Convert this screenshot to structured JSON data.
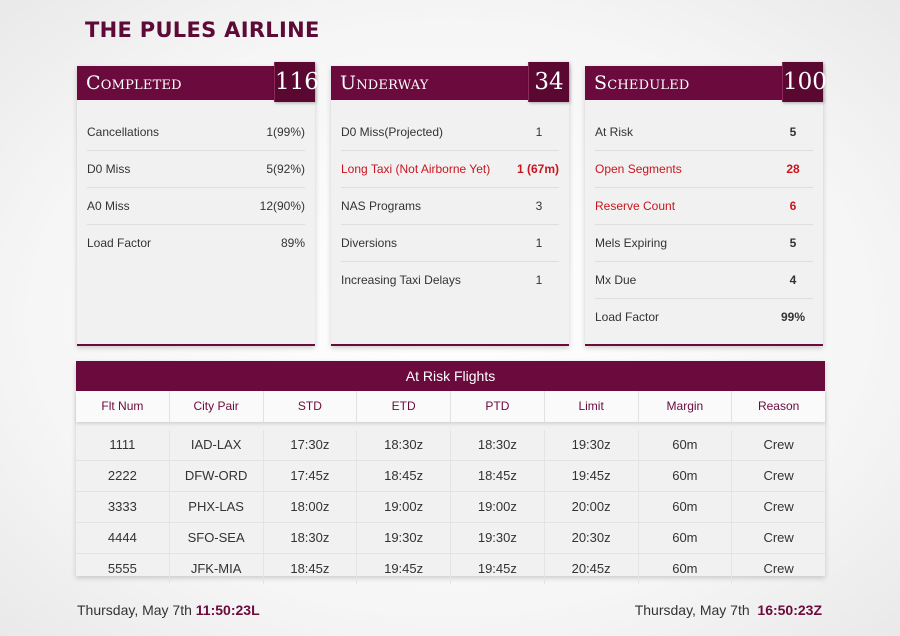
{
  "app": {
    "title": "THE PULES AIRLINE"
  },
  "cards": [
    {
      "name": "Completed",
      "count": "116",
      "rows": [
        {
          "label": "Cancellations",
          "value": "1(99%)",
          "alert": false
        },
        {
          "label": "D0 Miss",
          "value": "5(92%)",
          "alert": false
        },
        {
          "label": "A0 Miss",
          "value": "12(90%)",
          "alert": false
        },
        {
          "label": "Load Factor",
          "value": "89%",
          "alert": false
        }
      ]
    },
    {
      "name": "Underway",
      "count": "34",
      "rows": [
        {
          "label": "D0 Miss(Projected)",
          "value": "1",
          "alert": false
        },
        {
          "label": "Long Taxi (Not Airborne Yet)",
          "value": "1 (67m)",
          "alert": true
        },
        {
          "label": "NAS Programs",
          "value": "3",
          "alert": false
        },
        {
          "label": "Diversions",
          "value": "1",
          "alert": false
        },
        {
          "label": "Increasing Taxi Delays",
          "value": "1",
          "alert": false
        }
      ]
    },
    {
      "name": "Scheduled",
      "count": "100",
      "rows": [
        {
          "label": "At Risk",
          "value": "5",
          "alert": false
        },
        {
          "label": "Open Segments",
          "value": "28",
          "alert": true
        },
        {
          "label": "Reserve Count",
          "value": "6",
          "alert": true
        },
        {
          "label": "Mels Expiring",
          "value": "5",
          "alert": false
        },
        {
          "label": "Mx Due",
          "value": "4",
          "alert": false
        },
        {
          "label": "Load Factor",
          "value": "99%",
          "alert": false
        }
      ]
    }
  ],
  "at_risk": {
    "title": "At Risk Flights",
    "columns": [
      "Flt Num",
      "City Pair",
      "STD",
      "ETD",
      "PTD",
      "Limit",
      "Margin",
      "Reason"
    ],
    "rows": [
      [
        "1111",
        "IAD-LAX",
        "17:30z",
        "18:30z",
        "18:30z",
        "19:30z",
        "60m",
        "Crew"
      ],
      [
        "2222",
        "DFW-ORD",
        "17:45z",
        "18:45z",
        "18:45z",
        "19:45z",
        "60m",
        "Crew"
      ],
      [
        "3333",
        "PHX-LAS",
        "18:00z",
        "19:00z",
        "19:00z",
        "20:00z",
        "60m",
        "Crew"
      ],
      [
        "4444",
        "SFO-SEA",
        "18:30z",
        "19:30z",
        "19:30z",
        "20:30z",
        "60m",
        "Crew"
      ],
      [
        "5555",
        "JFK-MIA",
        "18:45z",
        "19:45z",
        "19:45z",
        "20:45z",
        "60m",
        "Crew"
      ]
    ]
  },
  "footer": {
    "local_date": "Thursday, May 7th",
    "local_time": "11:50:23L",
    "zulu_date": "Thursday, May 7th",
    "zulu_time": "16:50:23Z"
  },
  "colors": {
    "brand": "#6b0a3d",
    "alert": "#c8161f"
  }
}
